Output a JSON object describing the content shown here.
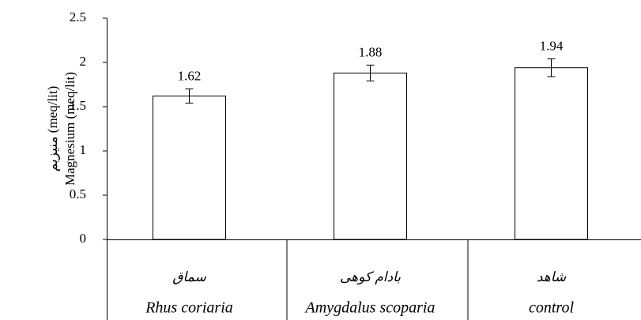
{
  "chart_data": {
    "type": "bar",
    "ylabel": "Magnesium (meq/lit)",
    "ylabel_fa": "منیزیم (meq/lit)",
    "categories": [
      "Rhus coriaria",
      "Amygdalus scoparia",
      "control"
    ],
    "categories_fa": [
      "سماق",
      "بادام کوهی",
      "شاهد"
    ],
    "values": [
      1.62,
      1.88,
      1.94
    ],
    "errors": [
      0.08,
      0.09,
      0.1
    ],
    "color": "#ffffff",
    "ylim": [
      0,
      2.5
    ],
    "yticks": [
      0,
      0.5,
      1,
      1.5,
      2,
      2.5
    ],
    "grid": false
  }
}
